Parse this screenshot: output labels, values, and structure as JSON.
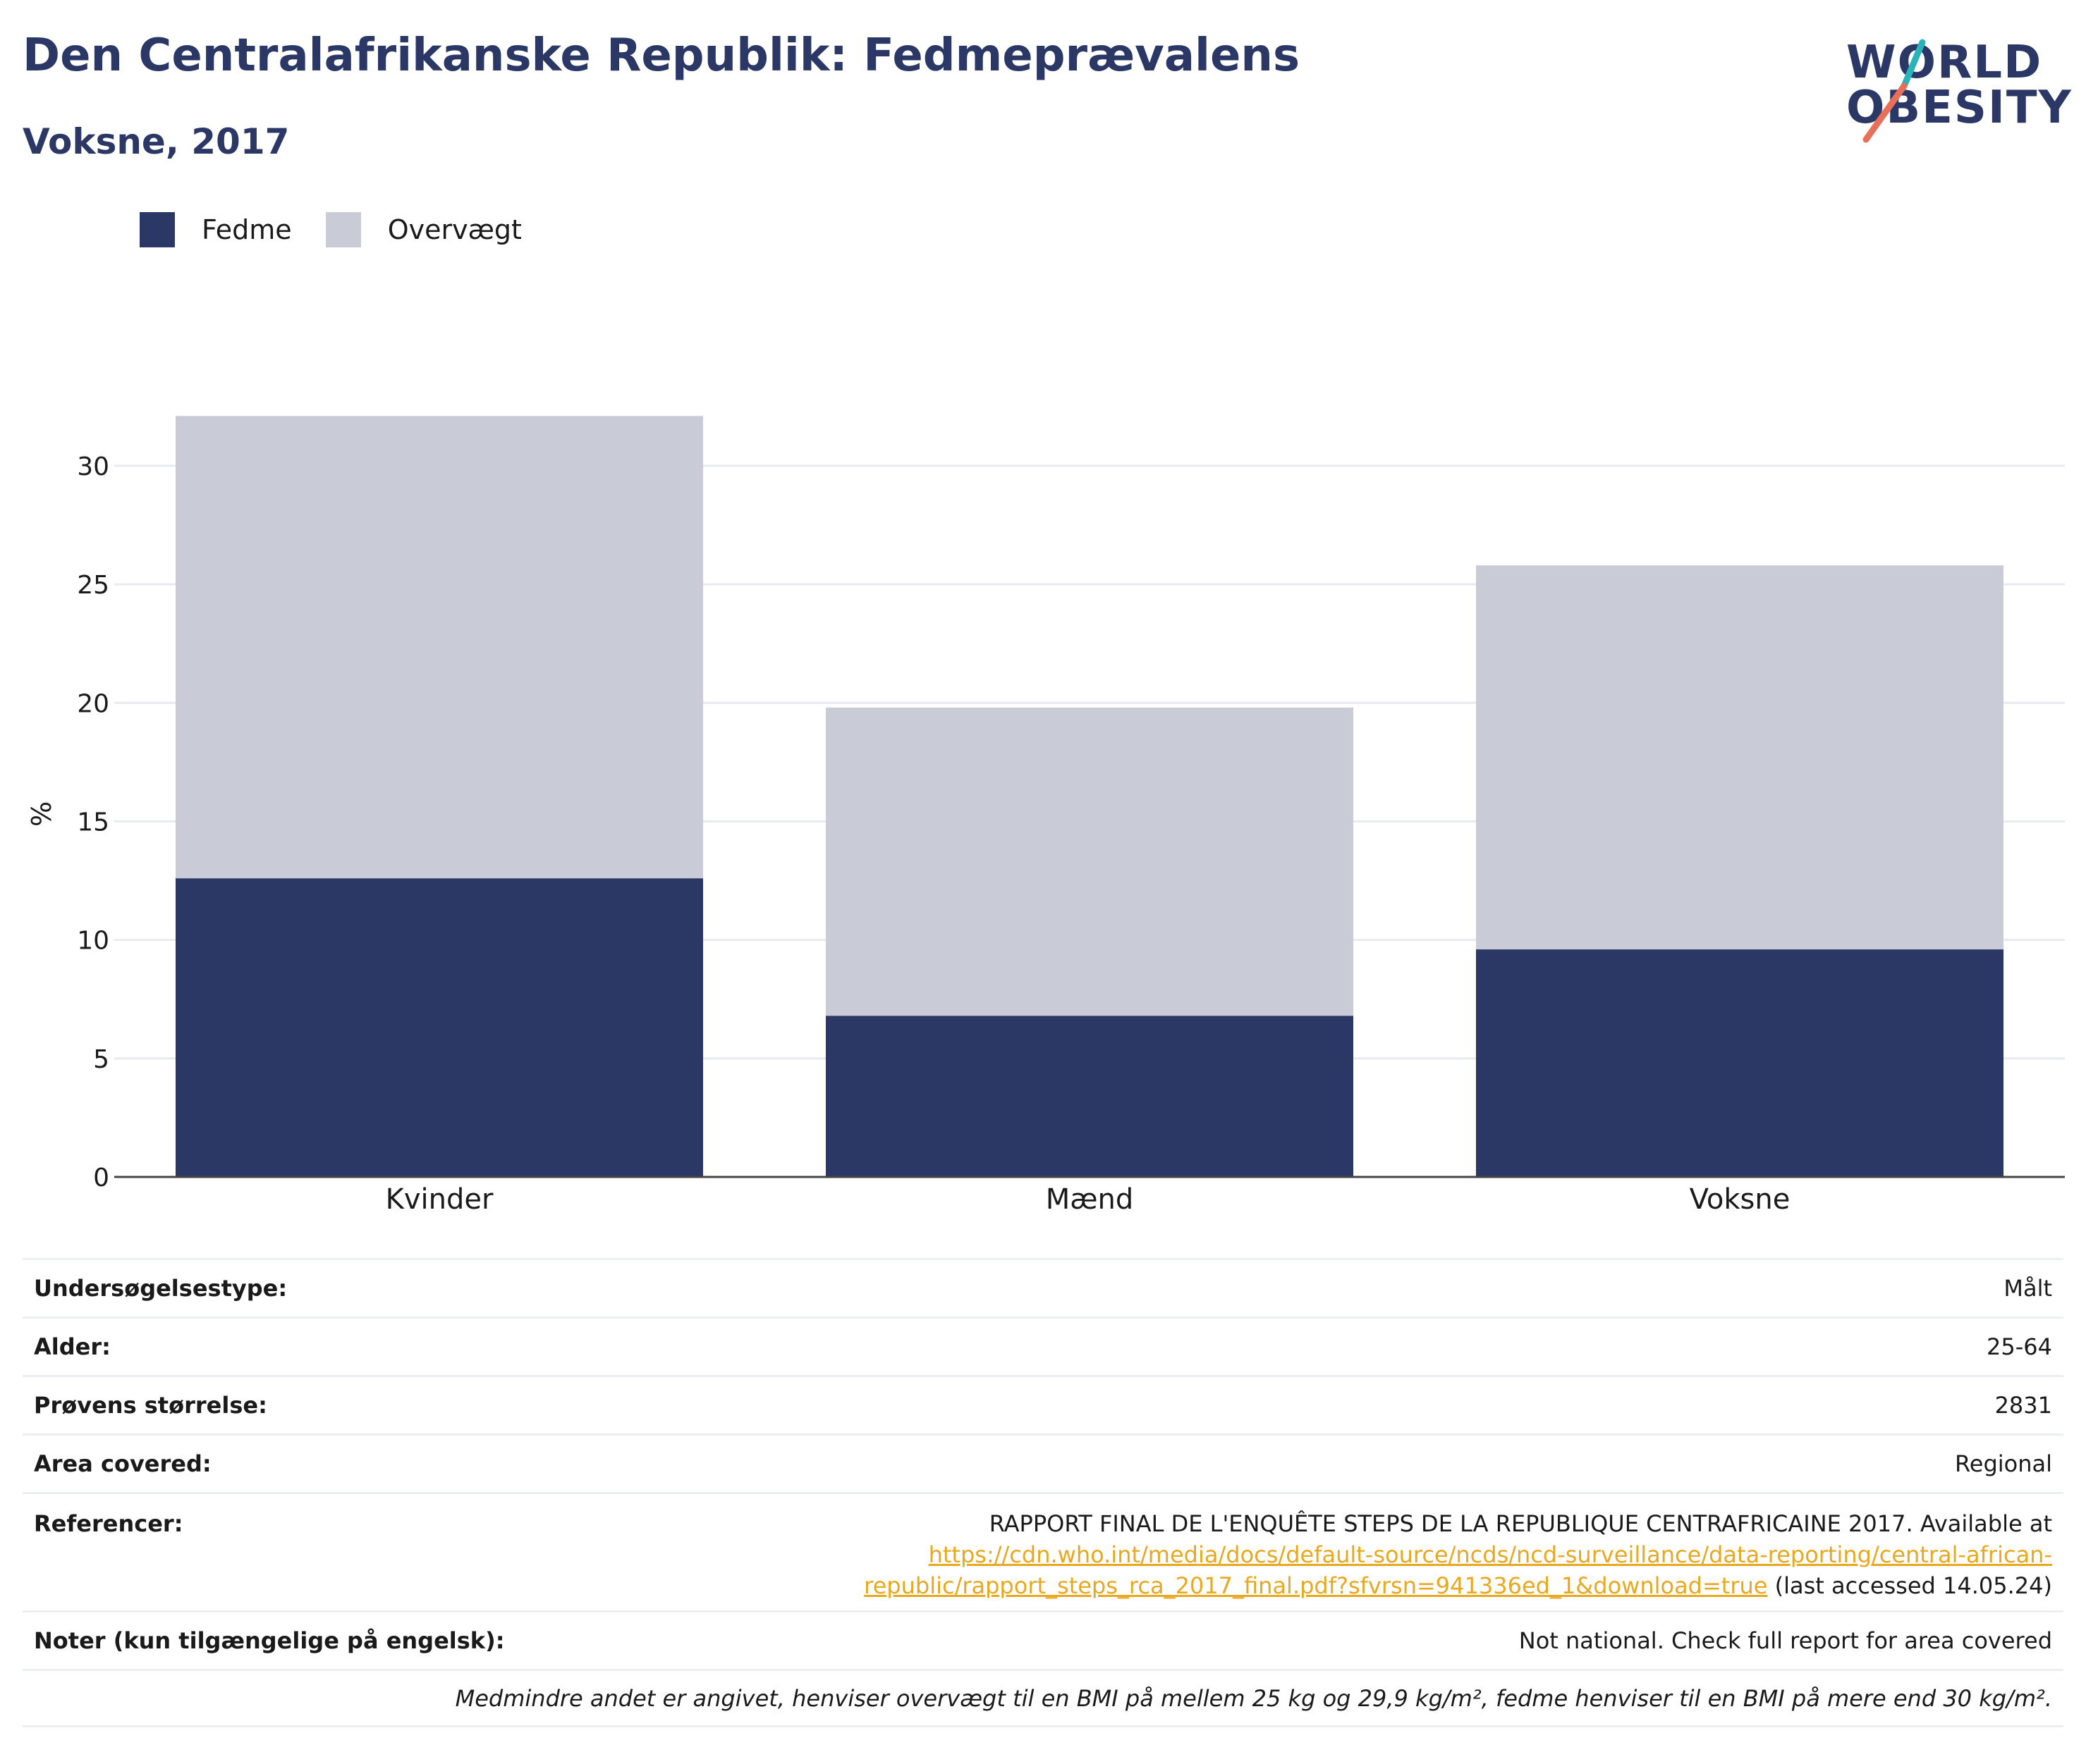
{
  "header": {
    "title": "Den Centralafrikanske Republik: Fedmeprævalens",
    "subtitle": "Voksne, 2017"
  },
  "logo": {
    "line1": "WORLD",
    "line2": "OBESITY",
    "colors": {
      "text": "#2b3866",
      "slash_top": "#2ab3b8",
      "slash_bottom": "#e8705a"
    }
  },
  "colors": {
    "fedme": "#2b3866",
    "overvaegt": "#c9cbd6",
    "grid": "#e9eaef",
    "axis": "#444444"
  },
  "chart_data": {
    "type": "bar",
    "stacked": true,
    "categories": [
      "Kvinder",
      "Mænd",
      "Voksne"
    ],
    "series": [
      {
        "name": "Fedme",
        "values": [
          12.6,
          6.8,
          9.6
        ]
      },
      {
        "name": "Overvægt",
        "values": [
          19.5,
          13.0,
          16.2
        ]
      }
    ],
    "ylabel": "%",
    "xlabel": "",
    "ylim": [
      0,
      33
    ],
    "yticks": [
      0,
      5,
      10,
      15,
      20,
      25,
      30
    ],
    "grid": true,
    "legend": "top-left"
  },
  "info": {
    "rows": [
      {
        "label": "Undersøgelsestype:",
        "value": "Målt"
      },
      {
        "label": "Alder:",
        "value": "25-64"
      },
      {
        "label": "Prøvens størrelse:",
        "value": "2831"
      },
      {
        "label": "Area covered:",
        "value": "Regional"
      }
    ],
    "reference": {
      "label": "Referencer:",
      "text": "RAPPORT FINAL DE L'ENQUÊTE STEPS DE LA REPUBLIQUE CENTRAFRICAINE 2017. Available at",
      "link_line1": "https://cdn.who.int/media/docs/default-source/ncds/ncd-surveillance/data-reporting/central-african-",
      "link_line2": "republic/rapport_steps_rca_2017_final.pdf?sfvrsn=941336ed_1&download=true",
      "suffix": "(last accessed 14.05.24)"
    },
    "notes": {
      "label": "Noter (kun tilgængelige på engelsk):",
      "value": "Not national. Check full report for area covered"
    },
    "footnote": "Medmindre andet er angivet, henviser overvægt til en BMI på mellem 25 kg og 29,9 kg/m², fedme henviser til en BMI på mere end 30 kg/m²."
  }
}
